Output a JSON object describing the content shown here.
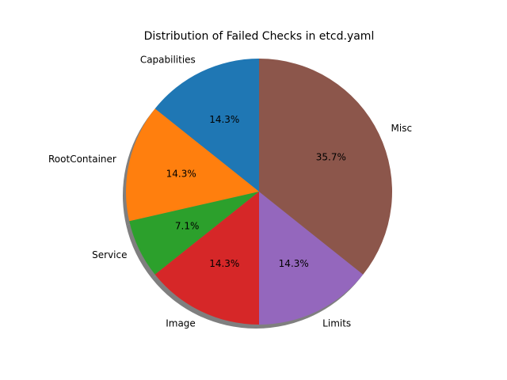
{
  "chart_data": {
    "type": "pie",
    "title": "Distribution of Failed Checks in etcd.yaml",
    "categories": [
      "Capabilities",
      "RootContainer",
      "Service",
      "Image",
      "Limits",
      "Misc"
    ],
    "values": [
      2,
      2,
      1,
      2,
      2,
      5
    ],
    "percent_labels": [
      "14.3%",
      "14.3%",
      "7.1%",
      "14.3%",
      "14.3%",
      "35.7%"
    ],
    "colors": [
      "#1f77b4",
      "#ff7f0e",
      "#2ca02c",
      "#d62728",
      "#9467bd",
      "#8c564b"
    ],
    "start_angle_deg": 90,
    "direction": "counterclockwise",
    "shadow": true
  }
}
